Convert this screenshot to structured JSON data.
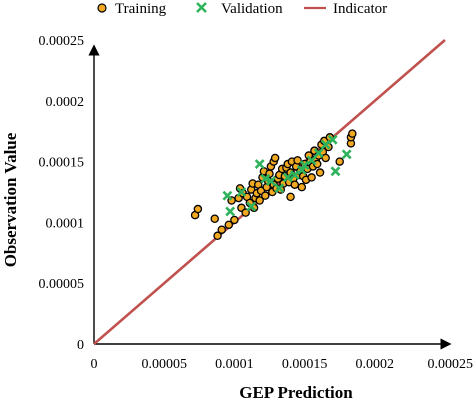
{
  "chart_data": {
    "type": "scatter",
    "title": "",
    "xlabel": "GEP Prediction",
    "ylabel": "Observation Value",
    "xlim": [
      0,
      0.00025
    ],
    "ylim": [
      0,
      0.00025
    ],
    "x_ticks": [
      "0",
      "0.00005",
      "0.0001",
      "0.00015",
      "0.0002",
      "0.00025"
    ],
    "y_ticks": [
      "0",
      "0.00005",
      "0.0001",
      "0.00015",
      "0.0002",
      "0.00025"
    ],
    "grid": false,
    "legend_position": "top",
    "series": [
      {
        "name": "Training",
        "marker": "circle",
        "color": "#f2a922",
        "edge_color": "#000000",
        "points": [
          [
            7.2e-05,
            0.000106
          ],
          [
            7.4e-05,
            0.000111
          ],
          [
            8.6e-05,
            0.000103
          ],
          [
            8.8e-05,
            8.9e-05
          ],
          [
            9.1e-05,
            9.4e-05
          ],
          [
            9.6e-05,
            9.8e-05
          ],
          [
            9.8e-05,
            0.000118
          ],
          [
            0.0001,
            0.000102
          ],
          [
            0.000103,
            0.00012
          ],
          [
            0.000104,
            0.000128
          ],
          [
            0.000105,
            0.000112
          ],
          [
            0.000106,
            0.000124
          ],
          [
            0.000108,
            0.000108
          ],
          [
            0.000109,
            0.000121
          ],
          [
            0.000111,
            0.000116
          ],
          [
            0.000112,
            0.000127
          ],
          [
            0.000113,
            0.000132
          ],
          [
            0.000114,
            0.000112
          ],
          [
            0.000115,
            0.00012
          ],
          [
            0.000116,
            0.000124
          ],
          [
            0.000117,
            0.000131
          ],
          [
            0.000118,
            0.000118
          ],
          [
            0.000119,
            0.000126
          ],
          [
            0.00012,
            0.000137
          ],
          [
            0.000121,
            0.000142
          ],
          [
            0.000122,
            0.000122
          ],
          [
            0.000123,
            0.000129
          ],
          [
            0.000124,
            0.000134
          ],
          [
            0.000125,
            0.00014
          ],
          [
            0.000126,
            0.000146
          ],
          [
            0.000127,
            0.000125
          ],
          [
            0.000128,
            0.000131
          ],
          [
            0.000128,
            0.00015
          ],
          [
            0.000129,
            0.000153
          ],
          [
            0.00013,
            0.000128
          ],
          [
            0.000131,
            0.000136
          ],
          [
            0.000132,
            0.000139
          ],
          [
            0.000133,
            0.000127
          ],
          [
            0.000134,
            0.000144
          ],
          [
            0.000135,
            0.000132
          ],
          [
            0.000136,
            0.000138
          ],
          [
            0.000137,
            0.000145
          ],
          [
            0.000138,
            0.000148
          ],
          [
            0.000139,
            0.000133
          ],
          [
            0.00014,
            0.000141
          ],
          [
            0.00014,
            0.000121
          ],
          [
            0.000141,
            0.00015
          ],
          [
            0.000142,
            0.000136
          ],
          [
            0.000143,
            0.000131
          ],
          [
            0.000144,
            0.000146
          ],
          [
            0.000145,
            0.000151
          ],
          [
            0.000146,
            0.000139
          ],
          [
            0.000147,
            0.000142
          ],
          [
            0.000148,
            0.000129
          ],
          [
            0.000149,
            0.000138
          ],
          [
            0.00015,
            0.000148
          ],
          [
            0.000151,
            0.000135
          ],
          [
            0.000152,
            0.000144
          ],
          [
            0.000153,
            0.000155
          ],
          [
            0.000154,
            0.00015
          ],
          [
            0.000155,
            0.000137
          ],
          [
            0.000156,
            0.000146
          ],
          [
            0.000157,
            0.000159
          ],
          [
            0.000158,
            0.000152
          ],
          [
            0.000159,
            0.000148
          ],
          [
            0.00016,
            0.000155
          ],
          [
            0.000161,
            0.000141
          ],
          [
            0.000162,
            0.000164
          ],
          [
            0.000163,
            0.000158
          ],
          [
            0.000164,
            0.000167
          ],
          [
            0.000165,
            0.000153
          ],
          [
            0.000167,
            0.000162
          ],
          [
            0.000168,
            0.00017
          ],
          [
            0.000175,
            0.00015
          ],
          [
            0.000183,
            0.000165
          ],
          [
            0.000183,
            0.00017
          ],
          [
            0.000184,
            0.000173
          ]
        ]
      },
      {
        "name": "Validation",
        "marker": "x",
        "color": "#2eb35c",
        "points": [
          [
            9.5e-05,
            0.000122
          ],
          [
            9.7e-05,
            0.000109
          ],
          [
            0.000105,
            0.000125
          ],
          [
            0.000112,
            0.000113
          ],
          [
            0.000118,
            0.000148
          ],
          [
            0.000122,
            0.000136
          ],
          [
            0.000126,
            0.000134
          ],
          [
            0.000132,
            0.000128
          ],
          [
            0.000138,
            0.000137
          ],
          [
            0.000143,
            0.000139
          ],
          [
            0.000148,
            0.000143
          ],
          [
            0.00015,
            0.000147
          ],
          [
            0.000155,
            0.000151
          ],
          [
            0.00016,
            0.000157
          ],
          [
            0.000165,
            0.000164
          ],
          [
            0.00017,
            0.000168
          ],
          [
            0.000172,
            0.000142
          ],
          [
            0.00018,
            0.000156
          ]
        ]
      },
      {
        "name": "Indicator",
        "marker": "line",
        "color": "#c0504d",
        "points": [
          [
            0,
            0
          ],
          [
            0.00025,
            0.00025
          ]
        ]
      }
    ]
  }
}
